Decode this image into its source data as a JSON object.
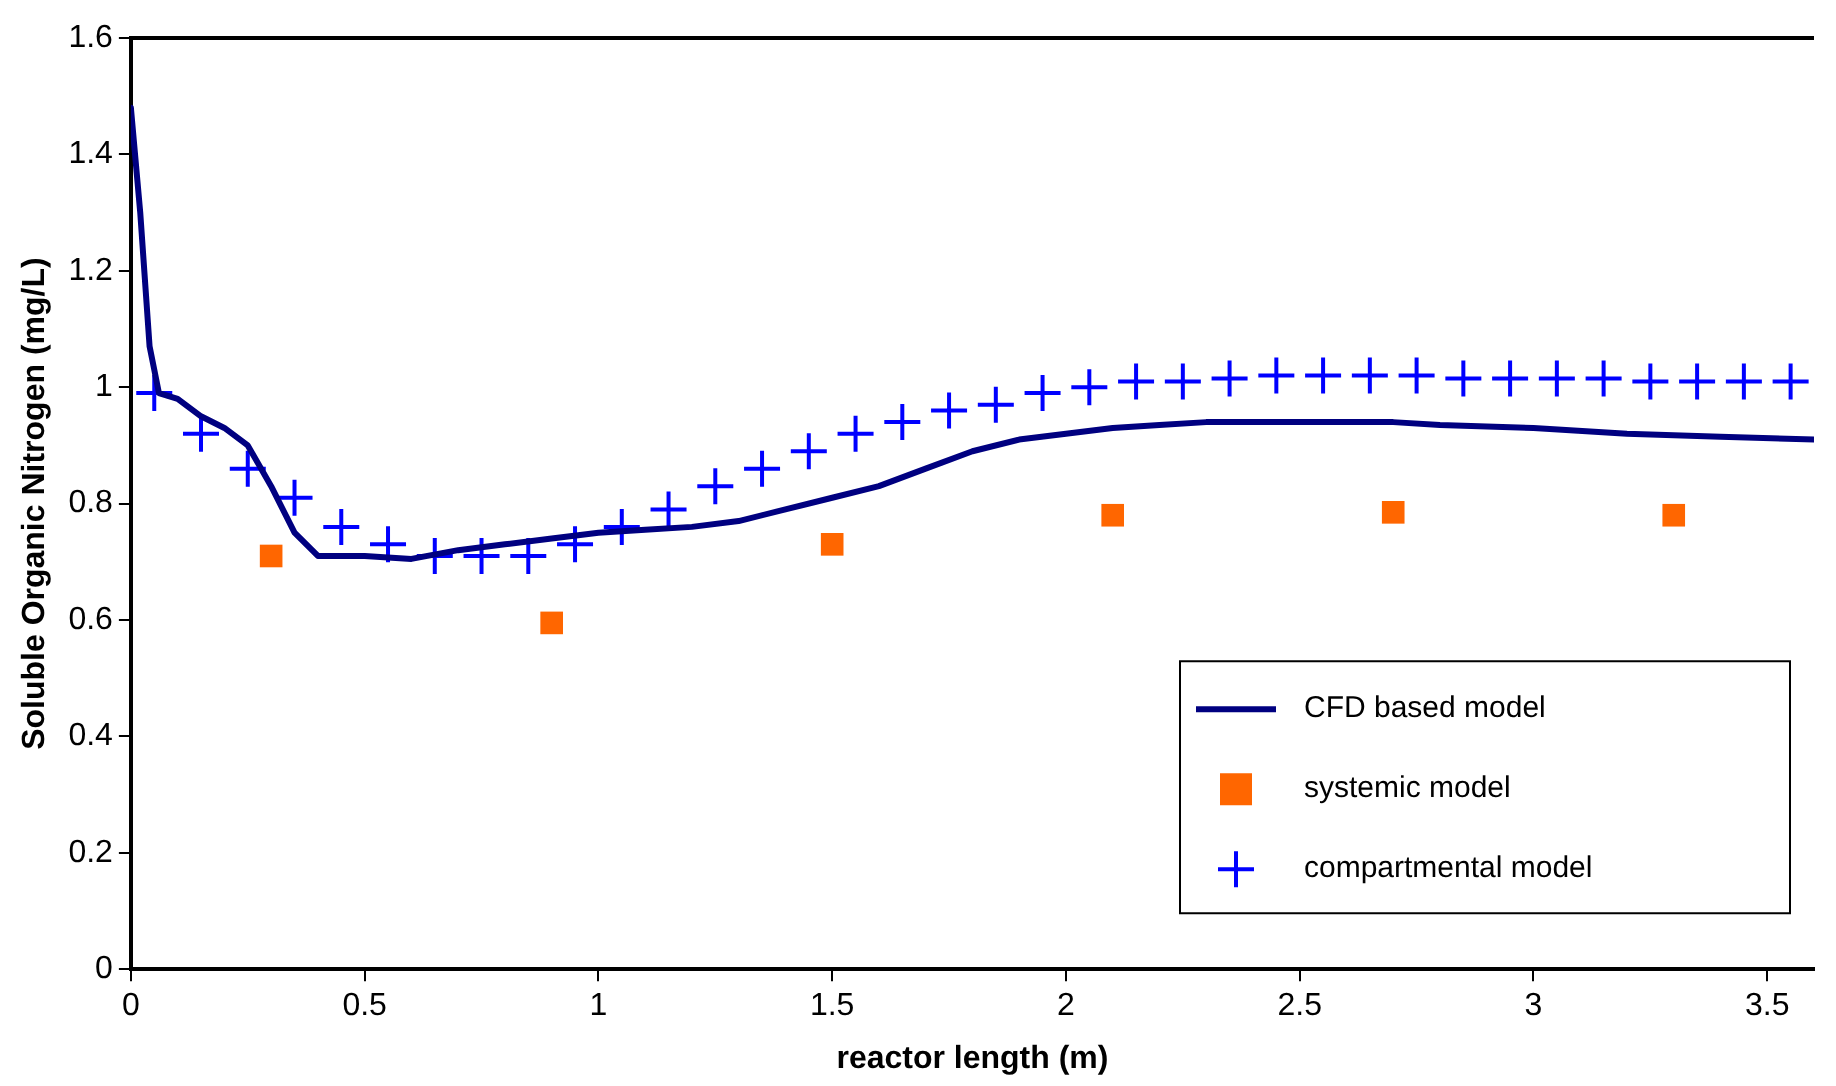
{
  "chart_data": {
    "type": "line",
    "xlabel": "reactor length (m)",
    "ylabel": "Soluble Organic Nitrogen (mg/L)",
    "xlim": [
      0,
      3.6
    ],
    "xticks": [
      0,
      0.5,
      1,
      1.5,
      2,
      2.5,
      3,
      3.5
    ],
    "ylim": [
      0,
      1.6
    ],
    "yticks": [
      0,
      0.2,
      0.4,
      0.6,
      0.8,
      1,
      1.2,
      1.4,
      1.6
    ],
    "grid": false,
    "legend": "bottom right",
    "series": [
      {
        "name": "CFD based model",
        "type": "line",
        "color": "#000080",
        "marker": "none",
        "x": [
          0,
          0.02,
          0.04,
          0.06,
          0.1,
          0.15,
          0.2,
          0.25,
          0.3,
          0.35,
          0.4,
          0.5,
          0.6,
          0.7,
          0.8,
          0.9,
          1.0,
          1.1,
          1.2,
          1.3,
          1.4,
          1.5,
          1.6,
          1.7,
          1.8,
          1.9,
          2.0,
          2.1,
          2.2,
          2.3,
          2.7,
          2.8,
          3.0,
          3.2,
          3.4,
          3.6
        ],
        "values": [
          1.48,
          1.3,
          1.07,
          0.99,
          0.98,
          0.95,
          0.93,
          0.9,
          0.83,
          0.75,
          0.71,
          0.71,
          0.705,
          0.72,
          0.73,
          0.74,
          0.75,
          0.755,
          0.76,
          0.77,
          0.79,
          0.81,
          0.83,
          0.86,
          0.89,
          0.91,
          0.92,
          0.93,
          0.935,
          0.94,
          0.94,
          0.935,
          0.93,
          0.92,
          0.915,
          0.91
        ]
      },
      {
        "name": "systemic model",
        "type": "scatter",
        "color": "#ff6600",
        "marker": "square",
        "x": [
          0.3,
          0.9,
          1.5,
          2.1,
          2.7,
          3.3
        ],
        "values": [
          0.71,
          0.595,
          0.73,
          0.78,
          0.785,
          0.78
        ]
      },
      {
        "name": "compartmental model",
        "type": "scatter",
        "color": "#0000ff",
        "marker": "cross",
        "x": [
          0.05,
          0.15,
          0.25,
          0.35,
          0.45,
          0.55,
          0.65,
          0.75,
          0.85,
          0.95,
          1.05,
          1.15,
          1.25,
          1.35,
          1.45,
          1.55,
          1.65,
          1.75,
          1.85,
          1.95,
          2.05,
          2.15,
          2.25,
          2.35,
          2.45,
          2.55,
          2.65,
          2.75,
          2.85,
          2.95,
          3.05,
          3.15,
          3.25,
          3.35,
          3.45,
          3.55
        ],
        "values": [
          0.99,
          0.92,
          0.86,
          0.81,
          0.76,
          0.73,
          0.71,
          0.71,
          0.71,
          0.73,
          0.76,
          0.79,
          0.83,
          0.86,
          0.89,
          0.92,
          0.94,
          0.96,
          0.97,
          0.99,
          1.0,
          1.01,
          1.01,
          1.015,
          1.02,
          1.02,
          1.02,
          1.02,
          1.015,
          1.015,
          1.015,
          1.015,
          1.01,
          1.01,
          1.01,
          1.01
        ]
      }
    ]
  }
}
